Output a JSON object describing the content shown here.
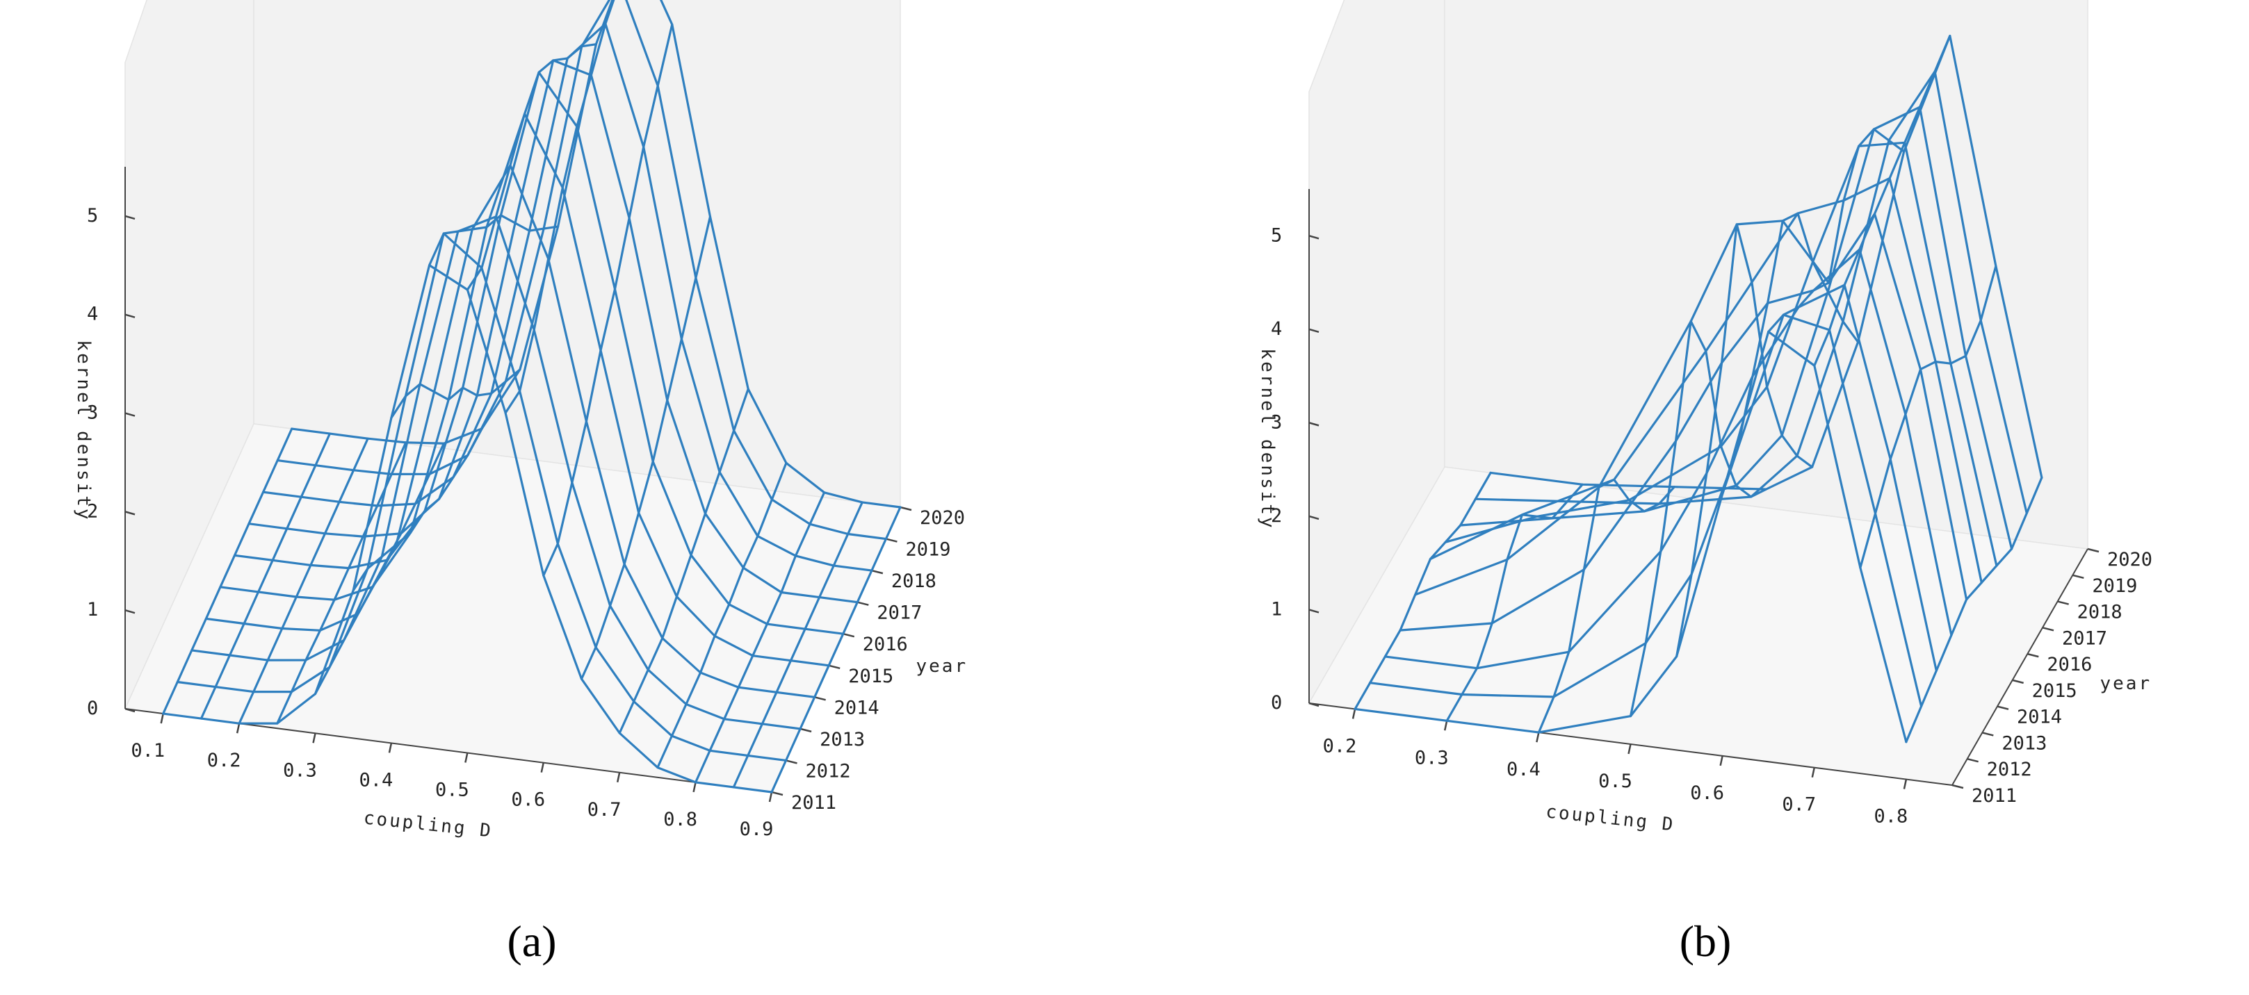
{
  "captions": [
    "(a)",
    "(b)"
  ],
  "colors": {
    "wire": "#2f7fbf",
    "axis": "#444444",
    "pane": "#f2f2f2"
  },
  "chart_data": [
    {
      "type": "surface-wireframe",
      "title": "",
      "xlabel": "coupling D",
      "ylabel": "year",
      "zlabel": "kernel density",
      "xlim": [
        0.05,
        0.9
      ],
      "ylim": [
        2011,
        2020
      ],
      "zlim": [
        0,
        5.5
      ],
      "x_ticks": [
        "0.1",
        "0.2",
        "0.3",
        "0.4",
        "0.5",
        "0.6",
        "0.7",
        "0.8",
        "0.9"
      ],
      "y_ticks": [
        "2011",
        "2012",
        "2013",
        "2014",
        "2015",
        "2016",
        "2017",
        "2018",
        "2019",
        "2020"
      ],
      "z_ticks": [
        "0",
        "1",
        "2",
        "3",
        "4",
        "5"
      ],
      "x": [
        0.1,
        0.15,
        0.2,
        0.25,
        0.3,
        0.35,
        0.4,
        0.45,
        0.5,
        0.55,
        0.6,
        0.65,
        0.7,
        0.75,
        0.8,
        0.85,
        0.9
      ],
      "series": [
        {
          "year": "2011",
          "values": [
            0,
            0,
            0,
            0.05,
            0.4,
            1.5,
            3.3,
            4.9,
            4.7,
            3.5,
            1.9,
            0.9,
            0.4,
            0.1,
            0,
            0,
            0
          ]
        },
        {
          "year": "2012",
          "values": [
            0,
            0,
            0,
            0.05,
            0.35,
            1.4,
            3.2,
            4.9,
            4.6,
            3.4,
            1.9,
            0.9,
            0.4,
            0.1,
            0,
            0,
            0
          ]
        },
        {
          "year": "2013",
          "values": [
            0,
            0,
            0,
            0.05,
            0.3,
            1.2,
            3.0,
            4.6,
            4.8,
            3.7,
            2.2,
            1.0,
            0.4,
            0.1,
            0,
            0,
            0
          ]
        },
        {
          "year": "2014",
          "values": [
            0,
            0,
            0,
            0.03,
            0.25,
            1.0,
            2.6,
            4.3,
            5.0,
            4.1,
            2.5,
            1.1,
            0.4,
            0.1,
            0,
            0,
            0
          ]
        },
        {
          "year": "2015",
          "values": [
            0,
            0,
            0,
            0.02,
            0.2,
            0.8,
            2.2,
            4.0,
            5.2,
            4.5,
            2.9,
            1.3,
            0.5,
            0.15,
            0,
            0,
            0
          ]
        },
        {
          "year": "2016",
          "values": [
            0,
            0,
            0,
            0.02,
            0.15,
            0.7,
            2.0,
            3.8,
            5.3,
            4.8,
            3.2,
            1.5,
            0.6,
            0.15,
            0,
            0,
            0
          ]
        },
        {
          "year": "2017",
          "values": [
            0,
            0,
            0,
            0.02,
            0.1,
            0.5,
            1.6,
            3.4,
            5.1,
            5.0,
            3.6,
            1.8,
            0.7,
            0.2,
            0,
            0,
            0
          ]
        },
        {
          "year": "2018",
          "values": [
            0,
            0,
            0,
            0.01,
            0.08,
            0.4,
            1.3,
            3.0,
            4.8,
            5.2,
            4.0,
            2.1,
            0.8,
            0.2,
            0.05,
            0,
            0
          ]
        },
        {
          "year": "2019",
          "values": [
            0,
            0,
            0,
            0.01,
            0.06,
            0.3,
            1.1,
            2.7,
            4.6,
            5.3,
            4.3,
            2.4,
            0.9,
            0.25,
            0.05,
            0,
            0
          ]
        },
        {
          "year": "2020",
          "values": [
            0,
            0,
            0,
            0.01,
            0.05,
            0.25,
            0.9,
            2.4,
            4.3,
            5.4,
            4.6,
            2.7,
            1.0,
            0.3,
            0.05,
            0,
            0
          ]
        }
      ]
    },
    {
      "type": "surface-wireframe",
      "title": "",
      "xlabel": "coupling D",
      "ylabel": "year",
      "zlabel": "kernel density",
      "xlim": [
        0.15,
        0.85
      ],
      "ylim": [
        2011,
        2020
      ],
      "zlim": [
        0,
        5.5
      ],
      "x_ticks": [
        "0.2",
        "0.3",
        "0.4",
        "0.5",
        "0.6",
        "0.7",
        "0.8"
      ],
      "y_ticks": [
        "2011",
        "2012",
        "2013",
        "2014",
        "2015",
        "2016",
        "2017",
        "2018",
        "2019",
        "2020"
      ],
      "z_ticks": [
        "0",
        "1",
        "2",
        "3",
        "4",
        "5"
      ],
      "x": [
        0.2,
        0.3,
        0.4,
        0.5,
        0.55,
        0.6,
        0.65,
        0.7,
        0.75,
        0.8
      ],
      "series": [
        {
          "year": "2011",
          "values": [
            0,
            0,
            0,
            0.3,
            1.0,
            2.8,
            4.6,
            4.3,
            2.2,
            0.4
          ]
        },
        {
          "year": "2012",
          "values": [
            0,
            0,
            0.1,
            0.8,
            1.6,
            3.0,
            4.5,
            4.4,
            2.5,
            0.5
          ]
        },
        {
          "year": "2013",
          "values": [
            0,
            0,
            0.3,
            1.5,
            2.4,
            3.5,
            4.3,
            4.6,
            2.8,
            0.6
          ]
        },
        {
          "year": "2014",
          "values": [
            0,
            0.2,
            0.9,
            2.4,
            3.3,
            4.0,
            4.2,
            4.7,
            3.0,
            0.7
          ]
        },
        {
          "year": "2015",
          "values": [
            0.1,
            0.6,
            1.5,
            3.4,
            4.5,
            4.6,
            4.0,
            4.8,
            3.2,
            0.8
          ]
        },
        {
          "year": "2016",
          "values": [
            0.2,
            0.8,
            1.3,
            2.8,
            3.6,
            4.4,
            4.6,
            4.9,
            3.0,
            0.7
          ]
        },
        {
          "year": "2017",
          "values": [
            0.1,
            0.5,
            0.8,
            1.5,
            2.2,
            3.6,
            4.9,
            5.0,
            2.7,
            0.6
          ]
        },
        {
          "year": "2018",
          "values": [
            0,
            0.2,
            0.4,
            0.8,
            1.4,
            3.0,
            4.8,
            5.1,
            2.5,
            0.5
          ]
        },
        {
          "year": "2019",
          "values": [
            0,
            0.1,
            0.2,
            0.4,
            0.9,
            2.4,
            4.4,
            5.2,
            2.6,
            0.6
          ]
        },
        {
          "year": "2020",
          "values": [
            0,
            0,
            0.1,
            0.2,
            0.5,
            1.9,
            4.0,
            5.3,
            2.9,
            0.7
          ]
        }
      ]
    }
  ]
}
